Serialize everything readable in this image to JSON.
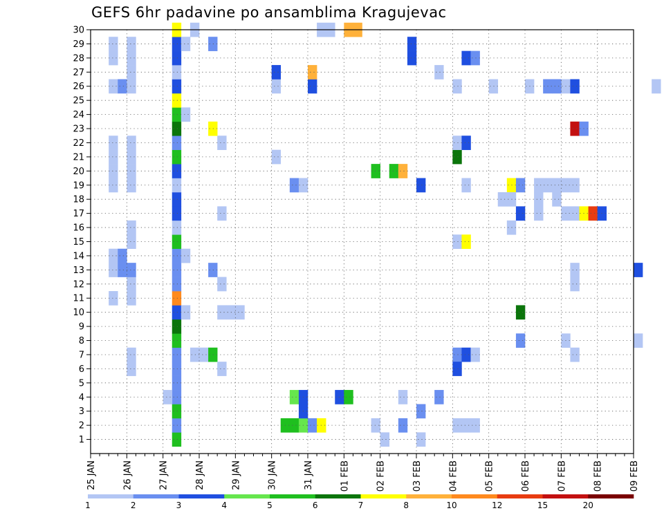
{
  "chart_data": {
    "type": "heatmap",
    "title": "GEFS 6hr padavine po ansamblima Kragujevac",
    "xlabel": "",
    "ylabel": "",
    "x_ticks": [
      "25 JAN",
      "26 JAN",
      "27 JAN",
      "28 JAN",
      "29 JAN",
      "30 JAN",
      "31 JAN",
      "01 FEB",
      "02 FEB",
      "03 FEB",
      "04 FEB",
      "05 FEB",
      "06 FEB",
      "07 FEB",
      "08 FEB",
      "09 FEB"
    ],
    "y_ticks": [
      "1",
      "2",
      "3",
      "4",
      "5",
      "6",
      "7",
      "8",
      "9",
      "10",
      "11",
      "12",
      "13",
      "14",
      "15",
      "16",
      "17",
      "18",
      "19",
      "20",
      "21",
      "22",
      "23",
      "24",
      "25",
      "26",
      "27",
      "28",
      "29",
      "30"
    ],
    "x_start": "25 JAN 00Z",
    "time_step_hours": 6,
    "y_range": [
      0,
      30
    ],
    "grid": true,
    "colorbar": {
      "labels": [
        "1",
        "2",
        "3",
        "4",
        "5",
        "6",
        "7",
        "8",
        "10",
        "12",
        "15",
        "20"
      ],
      "colors": [
        "#b3c6f4",
        "#6a8ff0",
        "#1f4fe0",
        "#66e64d",
        "#1fbf1f",
        "#0b750b",
        "#ffff00",
        "#ffb13a",
        "#ff8a1e",
        "#e83c10",
        "#c31010",
        "#7a0000"
      ]
    },
    "cells": [
      [
        11,
        2,
        1
      ],
      [
        13,
        2,
        1
      ],
      [
        14,
        2,
        1
      ],
      [
        19,
        2,
        1
      ],
      [
        20,
        2,
        1
      ],
      [
        21,
        2,
        1
      ],
      [
        22,
        2,
        1
      ],
      [
        26,
        2,
        1
      ],
      [
        28,
        2,
        1
      ],
      [
        29,
        2,
        1
      ],
      [
        26,
        3,
        2
      ],
      [
        13,
        3,
        2
      ],
      [
        14,
        3,
        2
      ],
      [
        12,
        4,
        1
      ],
      [
        11,
        4,
        1
      ],
      [
        19,
        4,
        1
      ],
      [
        20,
        4,
        1
      ],
      [
        21,
        4,
        1
      ],
      [
        26,
        4,
        1
      ],
      [
        27,
        4,
        1
      ],
      [
        28,
        4,
        1
      ],
      [
        29,
        4,
        1
      ],
      [
        22,
        4,
        1
      ],
      [
        15,
        4,
        1
      ],
      [
        16,
        4,
        1
      ],
      [
        6,
        4,
        1
      ],
      [
        7,
        4,
        1
      ],
      [
        13,
        4,
        2
      ],
      [
        1,
        9,
        5
      ],
      [
        2,
        9,
        2
      ],
      [
        3,
        9,
        5
      ],
      [
        4,
        9,
        2
      ],
      [
        5,
        9,
        2
      ],
      [
        6,
        9,
        2
      ],
      [
        7,
        9,
        2
      ],
      [
        8,
        9,
        5
      ],
      [
        9,
        9,
        6
      ],
      [
        10,
        9,
        3
      ],
      [
        11,
        9,
        9
      ],
      [
        12,
        9,
        2
      ],
      [
        13,
        9,
        2
      ],
      [
        14,
        9,
        2
      ],
      [
        15,
        9,
        5
      ],
      [
        16,
        9,
        1
      ],
      [
        17,
        9,
        3
      ],
      [
        18,
        9,
        3
      ],
      [
        19,
        9,
        1
      ],
      [
        20,
        9,
        3
      ],
      [
        21,
        9,
        5
      ],
      [
        22,
        9,
        2
      ],
      [
        23,
        9,
        6
      ],
      [
        24,
        9,
        5
      ],
      [
        25,
        9,
        7
      ],
      [
        26,
        9,
        3
      ],
      [
        27,
        9,
        1
      ],
      [
        28,
        9,
        3
      ],
      [
        29,
        9,
        3
      ],
      [
        30,
        9,
        7
      ],
      [
        4,
        8,
        1
      ],
      [
        10,
        10,
        1
      ],
      [
        14,
        10,
        1
      ],
      [
        24,
        10,
        1
      ],
      [
        29,
        10,
        1
      ],
      [
        30,
        11,
        1
      ],
      [
        7,
        11,
        1
      ],
      [
        7,
        12,
        1
      ],
      [
        7,
        13,
        5
      ],
      [
        13,
        13,
        2
      ],
      [
        29,
        13,
        2
      ],
      [
        23,
        13,
        7
      ],
      [
        10,
        14,
        1
      ],
      [
        6,
        14,
        1
      ],
      [
        12,
        14,
        1
      ],
      [
        22,
        14,
        1
      ],
      [
        17,
        14,
        1
      ],
      [
        10,
        15,
        1
      ],
      [
        10,
        16,
        1
      ],
      [
        21,
        20,
        1
      ],
      [
        26,
        20,
        1
      ],
      [
        27,
        20,
        3
      ],
      [
        2,
        21,
        5
      ],
      [
        2,
        22,
        5
      ],
      [
        2,
        23,
        4
      ],
      [
        19,
        22,
        2
      ],
      [
        19,
        23,
        1
      ],
      [
        4,
        27,
        3
      ],
      [
        4,
        28,
        5
      ],
      [
        2,
        24,
        2
      ],
      [
        2,
        25,
        7
      ],
      [
        26,
        24,
        3
      ],
      [
        27,
        24,
        8
      ],
      [
        4,
        22,
        4
      ],
      [
        4,
        23,
        3
      ],
      [
        3,
        23,
        3
      ],
      [
        30,
        28,
        8
      ],
      [
        30,
        29,
        8
      ],
      [
        20,
        31,
        5
      ],
      [
        2,
        31,
        1
      ],
      [
        19,
        36,
        3
      ],
      [
        1,
        32,
        1
      ],
      [
        2,
        34,
        2
      ],
      [
        30,
        25,
        1
      ],
      [
        30,
        26,
        1
      ],
      [
        4,
        34,
        1
      ],
      [
        28,
        35,
        3
      ],
      [
        29,
        35,
        3
      ],
      [
        20,
        33,
        5
      ],
      [
        20,
        34,
        8
      ],
      [
        21,
        40,
        6
      ],
      [
        7,
        40,
        2
      ],
      [
        7,
        41,
        3
      ],
      [
        7,
        42,
        1
      ],
      [
        6,
        40,
        3
      ],
      [
        2,
        40,
        1
      ],
      [
        2,
        41,
        1
      ],
      [
        2,
        42,
        1
      ],
      [
        22,
        40,
        1
      ],
      [
        22,
        41,
        3
      ],
      [
        15,
        40,
        1
      ],
      [
        15,
        41,
        7
      ],
      [
        19,
        41,
        1
      ],
      [
        26,
        40,
        1
      ],
      [
        1,
        36,
        1
      ],
      [
        3,
        36,
        2
      ],
      [
        4,
        38,
        2
      ],
      [
        27,
        38,
        1
      ],
      [
        28,
        41,
        3
      ],
      [
        28,
        42,
        2
      ],
      [
        16,
        46,
        1
      ],
      [
        19,
        46,
        7
      ],
      [
        19,
        47,
        2
      ],
      [
        18,
        45,
        1
      ],
      [
        18,
        46,
        1
      ],
      [
        17,
        47,
        3
      ],
      [
        26,
        44,
        1
      ],
      [
        26,
        48,
        1
      ],
      [
        17,
        49,
        1
      ],
      [
        18,
        49,
        1
      ],
      [
        19,
        49,
        1
      ],
      [
        19,
        50,
        1
      ],
      [
        26,
        52,
        1
      ],
      [
        26,
        53,
        3
      ],
      [
        18,
        51,
        1
      ],
      [
        8,
        52,
        1
      ],
      [
        13,
        53,
        1
      ],
      [
        23,
        53,
        11
      ],
      [
        23,
        54,
        2
      ],
      [
        19,
        51,
        1
      ],
      [
        19,
        52,
        1
      ],
      [
        19,
        53,
        1
      ],
      [
        26,
        50,
        2
      ],
      [
        26,
        51,
        2
      ],
      [
        12,
        53,
        1
      ],
      [
        7,
        53,
        1
      ],
      [
        10,
        47,
        6
      ],
      [
        8,
        47,
        2
      ],
      [
        17,
        52,
        1
      ],
      [
        17,
        53,
        1
      ],
      [
        17,
        54,
        7
      ],
      [
        17,
        55,
        10
      ],
      [
        17,
        56,
        3
      ],
      [
        13,
        60,
        3
      ],
      [
        8,
        60,
        1
      ],
      [
        26,
        62,
        1
      ]
    ]
  }
}
